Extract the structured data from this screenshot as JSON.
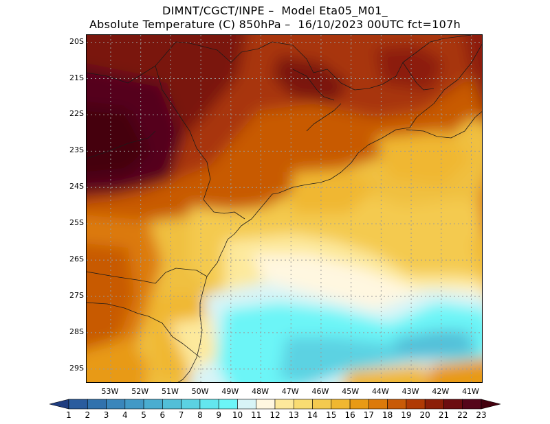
{
  "title": {
    "line1": "DIMNT/CGCT/INPE –  Model Eta05_M01_",
    "line2": "Absolute Temperature (C) 850hPa –  16/10/2023 00UTC fct=107h"
  },
  "map": {
    "lat_labels": [
      "20S",
      "21S",
      "22S",
      "23S",
      "24S",
      "25S",
      "26S",
      "27S",
      "28S",
      "29S"
    ],
    "lon_labels": [
      "53W",
      "52W",
      "51W",
      "50W",
      "49W",
      "48W",
      "47W",
      "46W",
      "45W",
      "44W",
      "43W",
      "42W",
      "41W"
    ],
    "lat_range": [
      19.8,
      29.4
    ],
    "lon_range": [
      53.8,
      40.6
    ],
    "grid": "dotted",
    "projection": "lat-lon"
  },
  "colorbar": {
    "labels": [
      "1",
      "2",
      "3",
      "4",
      "5",
      "6",
      "7",
      "8",
      "9",
      "10",
      "11",
      "12",
      "13",
      "14",
      "15",
      "16",
      "17",
      "18",
      "19",
      "20",
      "21",
      "22",
      "23"
    ],
    "colors": [
      "#23478f",
      "#2a5c9e",
      "#3172ad",
      "#3a86bb",
      "#4299c6",
      "#4aadd0",
      "#52bfd8",
      "#5bd2e2",
      "#63e6ee",
      "#6cf5f7",
      "#d8f4f7",
      "#fff7e0",
      "#fde99c",
      "#f9dc72",
      "#f4ca4f",
      "#f0b730",
      "#e89a14",
      "#dc7a0a",
      "#c85a06",
      "#b03a04",
      "#8c1f08",
      "#6c0d10",
      "#55051a",
      "#44000e"
    ],
    "triangle_low": "#1f3d80",
    "triangle_high": "#44000e"
  }
}
